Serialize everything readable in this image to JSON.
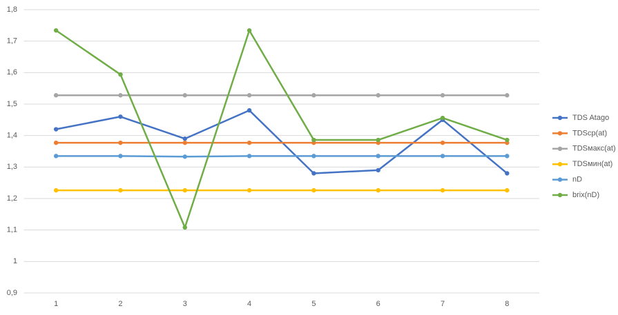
{
  "chart_data": {
    "type": "line",
    "categories": [
      "1",
      "2",
      "3",
      "4",
      "5",
      "6",
      "7",
      "8"
    ],
    "series": [
      {
        "name": "TDS Atago",
        "color": "#4472c4",
        "values": [
          1.42,
          1.46,
          1.39,
          1.48,
          1.28,
          1.29,
          1.45,
          1.28
        ]
      },
      {
        "name": "TDScp(at)",
        "color": "#ed7d31",
        "values": [
          1.377,
          1.377,
          1.377,
          1.377,
          1.377,
          1.377,
          1.377,
          1.377
        ]
      },
      {
        "name": "TDSмакс(at)",
        "color": "#a5a5a5",
        "values": [
          1.528,
          1.528,
          1.528,
          1.528,
          1.528,
          1.528,
          1.528,
          1.528
        ]
      },
      {
        "name": "TDSмин(at)",
        "color": "#ffc000",
        "values": [
          1.226,
          1.226,
          1.226,
          1.226,
          1.226,
          1.226,
          1.226,
          1.226
        ]
      },
      {
        "name": "nD",
        "color": "#5b9bd5",
        "values": [
          1.335,
          1.335,
          1.333,
          1.335,
          1.335,
          1.335,
          1.335,
          1.335
        ]
      },
      {
        "name": "brix(nD)",
        "color": "#70ad47",
        "values": [
          1.734,
          1.594,
          1.108,
          1.734,
          1.386,
          1.386,
          1.456,
          1.386
        ]
      }
    ],
    "ylim": [
      0.9,
      1.8
    ],
    "yticks": [
      {
        "value": 0.9,
        "label": "0,9"
      },
      1,
      {
        "value": 1.1,
        "label": "1,1"
      },
      {
        "value": 1.2,
        "label": "1,2"
      },
      {
        "value": 1.3,
        "label": "1,3"
      },
      {
        "value": 1.4,
        "label": "1,4"
      },
      {
        "value": 1.5,
        "label": "1,5"
      },
      {
        "value": 1.6,
        "label": "1,6"
      },
      {
        "value": 1.7,
        "label": "1,7"
      },
      {
        "value": 1.8,
        "label": "1,8"
      }
    ],
    "grid": true,
    "legend": "right"
  }
}
